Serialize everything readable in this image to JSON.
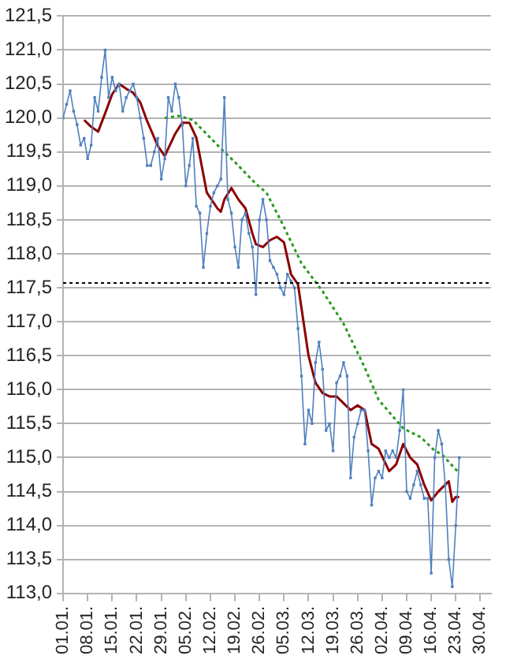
{
  "chart_data": {
    "type": "line",
    "xlim": [
      "--01-01",
      "--05-03"
    ],
    "xticks": [
      {
        "value": "--01-01",
        "label": "01.01."
      },
      {
        "value": "--01-08",
        "label": "08.01."
      },
      {
        "value": "--01-15",
        "label": "15.01."
      },
      {
        "value": "--01-22",
        "label": "22.01."
      },
      {
        "value": "--01-29",
        "label": "29.01."
      },
      {
        "value": "--02-05",
        "label": "05.02."
      },
      {
        "value": "--02-12",
        "label": "12.02."
      },
      {
        "value": "--02-19",
        "label": "19.02."
      },
      {
        "value": "--02-26",
        "label": "26.02."
      },
      {
        "value": "--03-05",
        "label": "05.03."
      },
      {
        "value": "--03-12",
        "label": "12.03."
      },
      {
        "value": "--03-19",
        "label": "19.03."
      },
      {
        "value": "--03-26",
        "label": "26.03."
      },
      {
        "value": "--04-02",
        "label": "02.04."
      },
      {
        "value": "--04-09",
        "label": "09.04."
      },
      {
        "value": "--04-16",
        "label": "16.04."
      },
      {
        "value": "--04-23",
        "label": "23.04."
      },
      {
        "value": "--04-30",
        "label": "30.04."
      }
    ],
    "ylim": [
      113,
      121.5
    ],
    "yticks": [
      {
        "value": 113,
        "label": "113,0"
      },
      {
        "value": 113.5,
        "label": "113,5"
      },
      {
        "value": 114,
        "label": "114,0"
      },
      {
        "value": 114.5,
        "label": "114,5"
      },
      {
        "value": 115,
        "label": "115,0"
      },
      {
        "value": 115.5,
        "label": "115,5"
      },
      {
        "value": 116,
        "label": "116,0"
      },
      {
        "value": 116.5,
        "label": "116,5"
      },
      {
        "value": 117,
        "label": "117,0"
      },
      {
        "value": 117.5,
        "label": "117,5"
      },
      {
        "value": 118,
        "label": "118,0"
      },
      {
        "value": 118.5,
        "label": "118,5"
      },
      {
        "value": 119,
        "label": "119,0"
      },
      {
        "value": 119.5,
        "label": "119,5"
      },
      {
        "value": 120,
        "label": "120,0"
      },
      {
        "value": 120.5,
        "label": "120,5"
      },
      {
        "value": 121,
        "label": "121,0"
      },
      {
        "value": 121.5,
        "label": "121,5"
      }
    ],
    "grid": "y",
    "legend": false,
    "ref_lines": [
      {
        "axis": "y",
        "value": 117.57,
        "color": "#000000",
        "line_style": "dotted"
      }
    ],
    "series": [
      {
        "color": "#4f7fbf",
        "marker": "square",
        "line_style": "solid",
        "x": [
          "--01-01",
          "--01-02",
          "--01-03",
          "--01-04",
          "--01-05",
          "--01-06",
          "--01-07",
          "--01-08",
          "--01-09",
          "--01-10",
          "--01-11",
          "--01-12",
          "--01-13",
          "--01-14",
          "--01-15",
          "--01-16",
          "--01-17",
          "--01-18",
          "--01-19",
          "--01-20",
          "--01-21",
          "--01-22",
          "--01-23",
          "--01-24",
          "--01-25",
          "--01-26",
          "--01-27",
          "--01-28",
          "--01-29",
          "--01-30",
          "--01-31",
          "--02-01",
          "--02-02",
          "--02-03",
          "--02-04",
          "--02-05",
          "--02-06",
          "--02-07",
          "--02-08",
          "--02-09",
          "--02-10",
          "--02-11",
          "--02-12",
          "--02-13",
          "--02-14",
          "--02-15",
          "--02-16",
          "--02-17",
          "--02-18",
          "--02-19",
          "--02-20",
          "--02-21",
          "--02-22",
          "--02-23",
          "--02-24",
          "--02-25",
          "--02-26",
          "--02-27",
          "--02-28",
          "--03-01",
          "--03-02",
          "--03-03",
          "--03-04",
          "--03-05",
          "--03-06",
          "--03-07",
          "--03-08",
          "--03-09",
          "--03-10",
          "--03-11",
          "--03-12",
          "--03-13",
          "--03-14",
          "--03-15",
          "--03-16",
          "--03-17",
          "--03-18",
          "--03-19",
          "--03-20",
          "--03-21",
          "--03-22",
          "--03-23",
          "--03-24",
          "--03-25",
          "--03-26",
          "--03-27",
          "--03-28",
          "--03-29",
          "--03-30",
          "--03-31",
          "--04-01",
          "--04-02",
          "--04-03",
          "--04-04",
          "--04-05",
          "--04-06",
          "--04-07",
          "--04-08",
          "--04-09",
          "--04-10",
          "--04-11",
          "--04-12",
          "--04-13",
          "--04-14",
          "--04-15",
          "--04-16",
          "--04-17",
          "--04-18",
          "--04-19",
          "--04-20",
          "--04-21",
          "--04-22",
          "--04-23",
          "--04-24"
        ],
        "values": [
          120.0,
          120.2,
          120.4,
          120.1,
          119.9,
          119.6,
          119.7,
          119.4,
          119.6,
          120.3,
          120.1,
          120.6,
          121.0,
          120.3,
          120.6,
          120.4,
          120.5,
          120.1,
          120.3,
          120.4,
          120.5,
          120.3,
          120.0,
          119.7,
          119.3,
          119.3,
          119.5,
          119.7,
          119.1,
          119.4,
          120.3,
          120.1,
          120.5,
          120.3,
          119.9,
          119.0,
          119.3,
          119.7,
          118.7,
          118.6,
          117.8,
          118.3,
          118.7,
          118.9,
          119.0,
          119.1,
          120.3,
          118.8,
          118.6,
          118.1,
          117.8,
          118.5,
          118.6,
          118.3,
          118.1,
          117.4,
          118.5,
          118.8,
          118.5,
          117.9,
          117.8,
          117.7,
          117.5,
          117.4,
          117.7,
          117.6,
          117.5,
          116.9,
          116.2,
          115.2,
          115.7,
          115.5,
          116.4,
          116.7,
          116.3,
          115.4,
          115.5,
          115.1,
          116.1,
          116.2,
          116.4,
          116.2,
          114.7,
          115.3,
          115.5,
          115.7,
          115.7,
          115.1,
          114.3,
          114.7,
          114.8,
          114.7,
          115.1,
          115.0,
          115.1,
          115.0,
          115.4,
          116.0,
          114.5,
          114.4,
          114.6,
          114.8,
          114.6,
          114.4,
          114.4,
          113.3,
          115.0,
          115.4,
          115.2,
          114.6,
          113.5,
          113.1,
          114.0,
          115.0
        ]
      },
      {
        "color": "#8b0000",
        "marker": "none",
        "line_style": "solid",
        "x": [
          "--01-07",
          "--01-09",
          "--01-11",
          "--01-13",
          "--01-15",
          "--01-17",
          "--01-19",
          "--01-21",
          "--01-23",
          "--01-25",
          "--01-28",
          "--01-30",
          "--02-02",
          "--02-04",
          "--02-06",
          "--02-08",
          "--02-11",
          "--02-14",
          "--02-15",
          "--02-16",
          "--02-18",
          "--02-20",
          "--02-22",
          "--02-24",
          "--02-25",
          "--02-27",
          "--03-01",
          "--03-03",
          "--03-05",
          "--03-07",
          "--03-09",
          "--03-10",
          "--03-12",
          "--03-14",
          "--03-16",
          "--03-18",
          "--03-20",
          "--03-22",
          "--03-24",
          "--03-26",
          "--03-28",
          "--03-30",
          "--04-01",
          "--04-04",
          "--04-06",
          "--04-08",
          "--04-10",
          "--04-12",
          "--04-14",
          "--04-16",
          "--04-18",
          "--04-21",
          "--04-22",
          "--04-23",
          "--04-24"
        ],
        "values": [
          119.97,
          119.87,
          119.8,
          120.07,
          120.35,
          120.5,
          120.43,
          120.37,
          120.23,
          119.95,
          119.59,
          119.44,
          119.77,
          119.93,
          119.93,
          119.71,
          118.9,
          118.67,
          118.62,
          118.8,
          118.97,
          118.8,
          118.67,
          118.3,
          118.14,
          118.1,
          118.2,
          118.25,
          118.17,
          117.7,
          117.55,
          117.2,
          116.5,
          116.1,
          115.95,
          115.9,
          115.9,
          115.8,
          115.7,
          115.77,
          115.7,
          115.2,
          115.13,
          114.8,
          114.9,
          115.2,
          115.0,
          114.9,
          114.6,
          114.37,
          114.5,
          114.65,
          114.35,
          114.42,
          114.42
        ]
      },
      {
        "color": "#2a9a1e",
        "marker": "none",
        "line_style": "dotted",
        "x": [
          "--01-30",
          "--02-03",
          "--02-07",
          "--02-15",
          "--02-19",
          "--02-25",
          "--02-28",
          "--03-04",
          "--03-10",
          "--03-16",
          "--03-22",
          "--03-28",
          "--04-01",
          "--04-08",
          "--04-13",
          "--04-17",
          "--04-19",
          "--04-24"
        ],
        "values": [
          120.0,
          120.03,
          119.97,
          119.55,
          119.35,
          119.03,
          118.9,
          118.5,
          117.86,
          117.45,
          116.97,
          116.33,
          115.85,
          115.43,
          115.3,
          115.1,
          115.05,
          114.77
        ]
      }
    ]
  }
}
